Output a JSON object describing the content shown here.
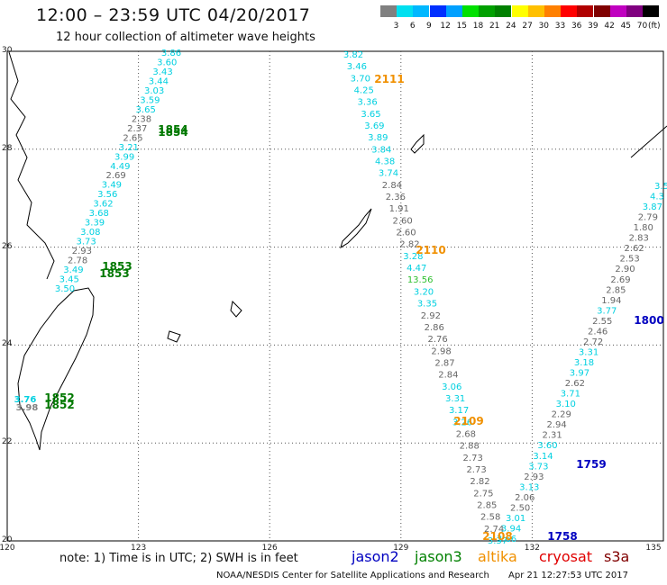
{
  "header": {
    "title": "12:00 – 23:59 UTC 04/20/2017",
    "subtitle": "12 hour collection of altimeter wave heights"
  },
  "color_scale": {
    "unit": "(ft)",
    "labels": [
      "3",
      "6",
      "9",
      "12",
      "15",
      "18",
      "21",
      "24",
      "27",
      "30",
      "33",
      "36",
      "39",
      "42",
      "45",
      "70"
    ],
    "colors": [
      "#808080",
      "#00e0f0",
      "#00b8ff",
      "#0030ff",
      "#00a0ff",
      "#00e000",
      "#00a000",
      "#008000",
      "#ffff00",
      "#ffc000",
      "#ff8000",
      "#ff0000",
      "#b00000",
      "#800000",
      "#c000c0",
      "#800080",
      "#000000"
    ]
  },
  "axes": {
    "lat_labels": [
      "30",
      "28",
      "26",
      "24",
      "22",
      "20"
    ],
    "lon_labels": [
      "120",
      "123",
      "126",
      "129",
      "132",
      "135"
    ]
  },
  "tracks": [
    {
      "name": "track-1854",
      "color": "#00d0e0",
      "values": [
        "3.86",
        "3.60",
        "3.43",
        "3.44",
        "3.03",
        "3.59",
        "3.65",
        "2.38",
        "2.37",
        "2.65",
        "3.21",
        "3.99",
        "4.49",
        "2.69",
        "3.49",
        "3.56",
        "3.62",
        "3.68",
        "3.39",
        "3.08",
        "3.73",
        "2.93",
        "2.78",
        "3.49",
        "3.45",
        "3.50"
      ]
    },
    {
      "name": "track-2111",
      "color": "#00d0e0",
      "values": [
        "3.82",
        "3.46",
        "3.70",
        "4.25",
        "3.36",
        "3.65",
        "3.69",
        "3.89",
        "3.84",
        "4.38",
        "3.74",
        "2.84",
        "2.36",
        "1.91",
        "2.60",
        "2.60",
        "2.82",
        "3.28",
        "4.47",
        "13.56",
        "3.20",
        "3.35",
        "2.92",
        "2.86",
        "2.76",
        "2.98",
        "2.87",
        "2.84",
        "3.06",
        "3.31",
        "3.17",
        "3.26",
        "2.68",
        "2.88",
        "2.73",
        "2.73",
        "2.82",
        "2.75",
        "2.85",
        "2.58",
        "2.74",
        "3.37"
      ]
    },
    {
      "name": "track-1800",
      "color": "#00d0e0",
      "values": [
        "3.5",
        "4.3",
        "3.87",
        "2.79",
        "1.80",
        "2.83",
        "2.62",
        "2.53",
        "2.90",
        "2.69",
        "2.85",
        "1.94",
        "3.77",
        "2.55",
        "2.46",
        "2.72",
        "3.31",
        "3.18",
        "3.97",
        "2.62",
        "3.71",
        "3.10",
        "2.29",
        "2.94",
        "2.31",
        "3.60",
        "3.14",
        "3.73",
        "2.93",
        "3.13",
        "2.06",
        "2.50",
        "3.01",
        "3.94",
        "3.66"
      ]
    }
  ],
  "pass_labels": [
    {
      "text": "1854",
      "color": "#007800"
    },
    {
      "text": "1854",
      "color": "#007800"
    },
    {
      "text": "1853",
      "color": "#007800"
    },
    {
      "text": "1853",
      "color": "#007800"
    },
    {
      "text": "1852",
      "color": "#007800"
    },
    {
      "text": "1852",
      "color": "#007800"
    },
    {
      "text": "2111",
      "color": "#f09000"
    },
    {
      "text": "2110",
      "color": "#f09000"
    },
    {
      "text": "2109",
      "color": "#f09000"
    },
    {
      "text": "2108",
      "color": "#f09000"
    },
    {
      "text": "1800",
      "color": "#0000c0"
    },
    {
      "text": "1759",
      "color": "#0000c0"
    },
    {
      "text": "1758",
      "color": "#0000c0"
    },
    {
      "text": "3.76",
      "color": "#00d0e0"
    },
    {
      "text": "3.98",
      "color": "#808080"
    }
  ],
  "note": "note:  1) Time is in UTC;  2) SWH is in feet",
  "legend": [
    {
      "text": "jason2",
      "color": "#0000c0"
    },
    {
      "text": "jason3",
      "color": "#008000"
    },
    {
      "text": "altika",
      "color": "#f09000"
    },
    {
      "text": "cryosat",
      "color": "#e00000"
    },
    {
      "text": "s3a",
      "color": "#800000"
    }
  ],
  "footer": {
    "org": "NOAA/NESDIS Center for Satellite Applications and Research",
    "timestamp": "Apr 21 12:27:53 UTC 2017"
  }
}
